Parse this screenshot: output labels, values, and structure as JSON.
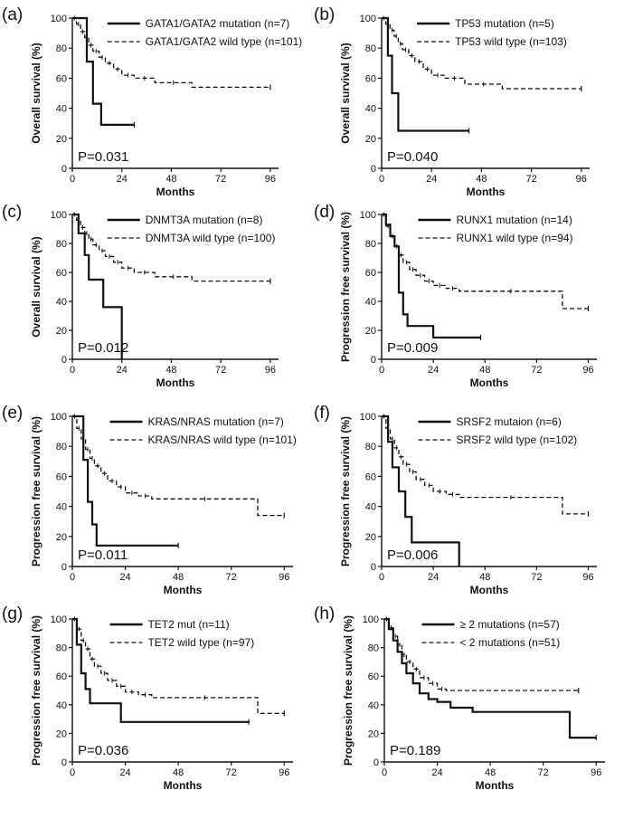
{
  "figure": {
    "background": "#ffffff",
    "line_color": "#111111"
  },
  "chart_data": [
    {
      "label": "(a)",
      "type": "line",
      "ylabel": "Overall survival (%)",
      "xlabel": "Months",
      "xlim": [
        0,
        100
      ],
      "ylim": [
        0,
        100
      ],
      "xticks": [
        0,
        24,
        48,
        72,
        96
      ],
      "yticks": [
        0,
        20,
        40,
        60,
        80,
        100
      ],
      "pvalue": "P=0.031",
      "series": [
        {
          "name": "GATA1/GATA2 mutation (n=7)",
          "style": "solid",
          "x": [
            0,
            7,
            7,
            10,
            10,
            14,
            14,
            30
          ],
          "y": [
            100,
            100,
            71,
            71,
            43,
            43,
            29,
            29
          ]
        },
        {
          "name": "GATA1/GATA2 wild type (n=101)",
          "style": "dashed",
          "x": [
            0,
            2,
            2,
            4,
            4,
            6,
            6,
            8,
            8,
            10,
            10,
            13,
            13,
            16,
            16,
            20,
            20,
            24,
            24,
            30,
            30,
            40,
            40,
            58,
            58,
            96
          ],
          "y": [
            100,
            100,
            96,
            96,
            91,
            91,
            87,
            87,
            82,
            82,
            78,
            78,
            74,
            74,
            70,
            70,
            66,
            66,
            62,
            62,
            60,
            60,
            57,
            57,
            54,
            54
          ]
        }
      ]
    },
    {
      "label": "(b)",
      "type": "line",
      "ylabel": "Overall survival (%)",
      "xlabel": "Months",
      "xlim": [
        0,
        100
      ],
      "ylim": [
        0,
        100
      ],
      "xticks": [
        0,
        24,
        48,
        72,
        96
      ],
      "yticks": [
        0,
        20,
        40,
        60,
        80,
        100
      ],
      "pvalue": "P=0.040",
      "series": [
        {
          "name": "TP53 mutation (n=5)",
          "style": "solid",
          "x": [
            0,
            3,
            3,
            5,
            5,
            8,
            8,
            42
          ],
          "y": [
            100,
            100,
            75,
            75,
            50,
            50,
            25,
            25
          ]
        },
        {
          "name": "TP53 wild type (n=103)",
          "style": "dashed",
          "x": [
            0,
            2,
            2,
            4,
            4,
            6,
            6,
            8,
            8,
            10,
            10,
            13,
            13,
            16,
            16,
            20,
            20,
            24,
            24,
            30,
            30,
            40,
            40,
            58,
            58,
            96
          ],
          "y": [
            100,
            100,
            96,
            96,
            92,
            92,
            88,
            88,
            83,
            83,
            79,
            79,
            75,
            75,
            71,
            71,
            66,
            66,
            62,
            62,
            60,
            60,
            56,
            56,
            53,
            53
          ]
        }
      ]
    },
    {
      "label": "(c)",
      "type": "line",
      "ylabel": "Overall survival (%)",
      "xlabel": "Months",
      "xlim": [
        0,
        100
      ],
      "ylim": [
        0,
        100
      ],
      "xticks": [
        0,
        24,
        48,
        72,
        96
      ],
      "yticks": [
        0,
        20,
        40,
        60,
        80,
        100
      ],
      "pvalue": "P=0.012",
      "series": [
        {
          "name": "DNMT3A mutation (n=8)",
          "style": "solid",
          "x": [
            0,
            3,
            3,
            6,
            6,
            8,
            8,
            15,
            15,
            20,
            20,
            24,
            24
          ],
          "y": [
            100,
            100,
            87,
            87,
            72,
            72,
            55,
            55,
            36,
            36,
            36,
            36,
            0
          ]
        },
        {
          "name": "DNMT3A wild type (n=100)",
          "style": "dashed",
          "x": [
            0,
            2,
            2,
            4,
            4,
            6,
            6,
            8,
            8,
            10,
            10,
            13,
            13,
            16,
            16,
            20,
            20,
            24,
            24,
            30,
            30,
            40,
            40,
            58,
            58,
            96
          ],
          "y": [
            100,
            100,
            96,
            96,
            91,
            91,
            87,
            87,
            83,
            83,
            79,
            79,
            75,
            75,
            71,
            71,
            67,
            67,
            63,
            63,
            60,
            60,
            57,
            57,
            54,
            54
          ]
        }
      ]
    },
    {
      "label": "(d)",
      "type": "line",
      "ylabel": "Progression free survival (%)",
      "xlabel": "Months",
      "xlim": [
        0,
        100
      ],
      "ylim": [
        0,
        100
      ],
      "xticks": [
        0,
        24,
        48,
        72,
        96
      ],
      "yticks": [
        0,
        20,
        40,
        60,
        80,
        100
      ],
      "pvalue": "P=0.009",
      "series": [
        {
          "name": "RUNX1 mutation (n=14)",
          "style": "solid",
          "x": [
            0,
            2,
            2,
            4,
            4,
            6,
            6,
            8,
            8,
            10,
            10,
            12,
            12,
            24,
            24,
            46
          ],
          "y": [
            100,
            100,
            93,
            93,
            85,
            85,
            78,
            78,
            46,
            46,
            31,
            31,
            23,
            23,
            15,
            15
          ]
        },
        {
          "name": "RUNX1 wild type (n=94)",
          "style": "dashed",
          "x": [
            0,
            2,
            2,
            4,
            4,
            6,
            6,
            8,
            8,
            10,
            10,
            13,
            13,
            16,
            16,
            20,
            20,
            24,
            24,
            30,
            30,
            36,
            36,
            84,
            84,
            96
          ],
          "y": [
            100,
            100,
            92,
            92,
            85,
            85,
            78,
            78,
            72,
            72,
            67,
            67,
            62,
            62,
            58,
            58,
            54,
            54,
            51,
            51,
            49,
            49,
            47,
            47,
            35,
            35
          ]
        }
      ]
    },
    {
      "label": "(e)",
      "type": "line",
      "ylabel": "Progression free survival (%)",
      "xlabel": "Months",
      "xlim": [
        0,
        100
      ],
      "ylim": [
        0,
        100
      ],
      "xticks": [
        0,
        24,
        48,
        72,
        96
      ],
      "yticks": [
        0,
        20,
        40,
        60,
        80,
        100
      ],
      "pvalue": "P=0.011",
      "series": [
        {
          "name": "KRAS/NRAS mutation (n=7)",
          "style": "solid",
          "x": [
            0,
            5,
            5,
            7,
            7,
            9,
            9,
            11,
            11,
            48
          ],
          "y": [
            100,
            100,
            71,
            71,
            43,
            43,
            28,
            28,
            14,
            14
          ]
        },
        {
          "name": "KRAS/NRAS wild type (n=101)",
          "style": "dashed",
          "x": [
            0,
            2,
            2,
            4,
            4,
            6,
            6,
            8,
            8,
            10,
            10,
            13,
            13,
            16,
            16,
            20,
            20,
            24,
            24,
            30,
            30,
            36,
            36,
            84,
            84,
            96
          ],
          "y": [
            100,
            100,
            92,
            92,
            85,
            85,
            78,
            78,
            72,
            72,
            67,
            67,
            62,
            62,
            57,
            57,
            53,
            53,
            49,
            49,
            47,
            47,
            45,
            45,
            34,
            34
          ]
        }
      ]
    },
    {
      "label": "(f)",
      "type": "line",
      "ylabel": "Progression free survival (%)",
      "xlabel": "Months",
      "xlim": [
        0,
        100
      ],
      "ylim": [
        0,
        100
      ],
      "xticks": [
        0,
        24,
        48,
        72,
        96
      ],
      "yticks": [
        0,
        20,
        40,
        60,
        80,
        100
      ],
      "pvalue": "P=0.006",
      "series": [
        {
          "name": "SRSF2 mutaion (n=6)",
          "style": "solid",
          "x": [
            0,
            3,
            3,
            5,
            5,
            8,
            8,
            11,
            11,
            14,
            14,
            36,
            36
          ],
          "y": [
            100,
            100,
            83,
            83,
            66,
            66,
            50,
            50,
            33,
            33,
            16,
            16,
            0
          ]
        },
        {
          "name": "SRSF2 wild type (n=102)",
          "style": "dashed",
          "x": [
            0,
            2,
            2,
            4,
            4,
            6,
            6,
            8,
            8,
            10,
            10,
            13,
            13,
            16,
            16,
            20,
            20,
            24,
            24,
            30,
            30,
            36,
            36,
            84,
            84,
            96
          ],
          "y": [
            100,
            100,
            92,
            92,
            85,
            85,
            79,
            79,
            73,
            73,
            68,
            68,
            63,
            63,
            58,
            58,
            54,
            54,
            50,
            50,
            48,
            48,
            46,
            46,
            35,
            35
          ]
        }
      ]
    },
    {
      "label": "(g)",
      "type": "line",
      "ylabel": "Progression free survival (%)",
      "xlabel": "Months",
      "xlim": [
        0,
        100
      ],
      "ylim": [
        0,
        100
      ],
      "xticks": [
        0,
        24,
        48,
        72,
        96
      ],
      "yticks": [
        0,
        20,
        40,
        60,
        80,
        100
      ],
      "pvalue": "P=0.036",
      "series": [
        {
          "name": "TET2 mut (n=11)",
          "style": "solid",
          "x": [
            0,
            2,
            2,
            4,
            4,
            6,
            6,
            8,
            8,
            22,
            22,
            80
          ],
          "y": [
            100,
            100,
            82,
            82,
            62,
            62,
            51,
            51,
            41,
            41,
            28,
            28
          ]
        },
        {
          "name": "TET2 wild type (n=97)",
          "style": "dashed",
          "x": [
            0,
            2,
            2,
            4,
            4,
            6,
            6,
            8,
            8,
            10,
            10,
            13,
            13,
            16,
            16,
            20,
            20,
            24,
            24,
            30,
            30,
            36,
            36,
            84,
            84,
            96
          ],
          "y": [
            100,
            100,
            93,
            93,
            85,
            85,
            79,
            79,
            72,
            72,
            67,
            67,
            62,
            62,
            57,
            57,
            53,
            53,
            49,
            49,
            47,
            47,
            45,
            45,
            34,
            34
          ]
        }
      ]
    },
    {
      "label": "(h)",
      "type": "line",
      "ylabel": "Progression free survival (%)",
      "xlabel": "Months",
      "xlim": [
        0,
        100
      ],
      "ylim": [
        0,
        100
      ],
      "xticks": [
        0,
        24,
        48,
        72,
        96
      ],
      "yticks": [
        0,
        20,
        40,
        60,
        80,
        100
      ],
      "pvalue": "P=0.189",
      "series": [
        {
          "name": "≥ 2 mutations (n=57)",
          "style": "solid",
          "x": [
            0,
            2,
            2,
            4,
            4,
            6,
            6,
            8,
            8,
            10,
            10,
            13,
            13,
            16,
            16,
            20,
            20,
            24,
            24,
            30,
            30,
            40,
            40,
            84,
            84,
            96
          ],
          "y": [
            100,
            100,
            93,
            93,
            85,
            85,
            77,
            77,
            69,
            69,
            62,
            62,
            55,
            55,
            48,
            48,
            44,
            44,
            42,
            42,
            38,
            38,
            35,
            35,
            17,
            17
          ]
        },
        {
          "name": "< 2 mutations (n=51)",
          "style": "dashed",
          "x": [
            0,
            2,
            2,
            4,
            4,
            6,
            6,
            8,
            8,
            10,
            10,
            13,
            13,
            16,
            16,
            20,
            20,
            24,
            24,
            28,
            28,
            88
          ],
          "y": [
            100,
            100,
            94,
            94,
            88,
            88,
            82,
            82,
            75,
            75,
            70,
            70,
            65,
            65,
            59,
            59,
            55,
            55,
            51,
            51,
            50,
            50
          ]
        }
      ]
    }
  ]
}
